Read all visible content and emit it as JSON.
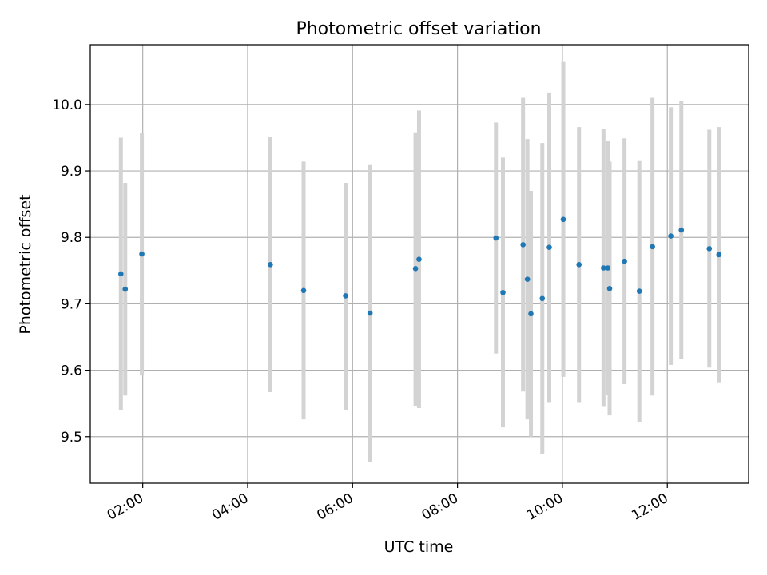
{
  "chart_data": {
    "type": "scatter",
    "title": "Photometric offset variation",
    "xlabel": "UTC time",
    "ylabel": "Photometric offset",
    "x_tick_labels": [
      "02:00",
      "04:00",
      "06:00",
      "08:00",
      "10:00",
      "12:00"
    ],
    "y_tick_labels": [
      "9.5",
      "9.6",
      "9.7",
      "9.8",
      "9.9",
      "10.0"
    ],
    "xlim": [
      "01:00",
      "13:33"
    ],
    "ylim": [
      9.43,
      10.09
    ],
    "grid": true,
    "colors": {
      "points": "#1f77b4",
      "error_bars": "#d3d3d3",
      "grid": "#b0b0b0"
    },
    "series": [
      {
        "points": [
          {
            "x": "01:35",
            "y": 9.745,
            "err_low": 9.54,
            "err_high": 9.95
          },
          {
            "x": "01:40",
            "y": 9.722,
            "err_low": 9.562,
            "err_high": 9.882
          },
          {
            "x": "01:59",
            "y": 9.775,
            "err_low": 9.592,
            "err_high": 9.957
          },
          {
            "x": "04:26",
            "y": 9.759,
            "err_low": 9.567,
            "err_high": 9.951
          },
          {
            "x": "05:04",
            "y": 9.72,
            "err_low": 9.526,
            "err_high": 9.914
          },
          {
            "x": "05:52",
            "y": 9.712,
            "err_low": 9.54,
            "err_high": 9.882
          },
          {
            "x": "06:20",
            "y": 9.686,
            "err_low": 9.462,
            "err_high": 9.91
          },
          {
            "x": "07:12",
            "y": 9.753,
            "err_low": 9.546,
            "err_high": 9.958
          },
          {
            "x": "07:16",
            "y": 9.767,
            "err_low": 9.543,
            "err_high": 9.991
          },
          {
            "x": "08:44",
            "y": 9.799,
            "err_low": 9.625,
            "err_high": 9.973
          },
          {
            "x": "08:52",
            "y": 9.717,
            "err_low": 9.514,
            "err_high": 9.92
          },
          {
            "x": "09:15",
            "y": 9.789,
            "err_low": 9.568,
            "err_high": 10.01
          },
          {
            "x": "09:20",
            "y": 9.737,
            "err_low": 9.526,
            "err_high": 9.948
          },
          {
            "x": "09:24",
            "y": 9.685,
            "err_low": 9.5,
            "err_high": 9.87
          },
          {
            "x": "09:37",
            "y": 9.708,
            "err_low": 9.474,
            "err_high": 9.942
          },
          {
            "x": "09:45",
            "y": 9.785,
            "err_low": 9.552,
            "err_high": 10.018
          },
          {
            "x": "10:01",
            "y": 9.827,
            "err_low": 9.59,
            "err_high": 10.064
          },
          {
            "x": "10:19",
            "y": 9.759,
            "err_low": 9.552,
            "err_high": 9.966
          },
          {
            "x": "10:47",
            "y": 9.754,
            "err_low": 9.545,
            "err_high": 9.963
          },
          {
            "x": "10:52",
            "y": 9.754,
            "err_low": 9.563,
            "err_high": 9.945
          },
          {
            "x": "10:54",
            "y": 9.723,
            "err_low": 9.532,
            "err_high": 9.914
          },
          {
            "x": "11:11",
            "y": 9.764,
            "err_low": 9.579,
            "err_high": 9.949
          },
          {
            "x": "11:28",
            "y": 9.719,
            "err_low": 9.522,
            "err_high": 9.916
          },
          {
            "x": "11:43",
            "y": 9.786,
            "err_low": 9.562,
            "err_high": 10.01
          },
          {
            "x": "12:04",
            "y": 9.802,
            "err_low": 9.608,
            "err_high": 9.996
          },
          {
            "x": "12:16",
            "y": 9.811,
            "err_low": 9.617,
            "err_high": 10.005
          },
          {
            "x": "12:48",
            "y": 9.783,
            "err_low": 9.604,
            "err_high": 9.962
          },
          {
            "x": "12:59",
            "y": 9.774,
            "err_low": 9.582,
            "err_high": 9.966
          }
        ]
      }
    ]
  }
}
